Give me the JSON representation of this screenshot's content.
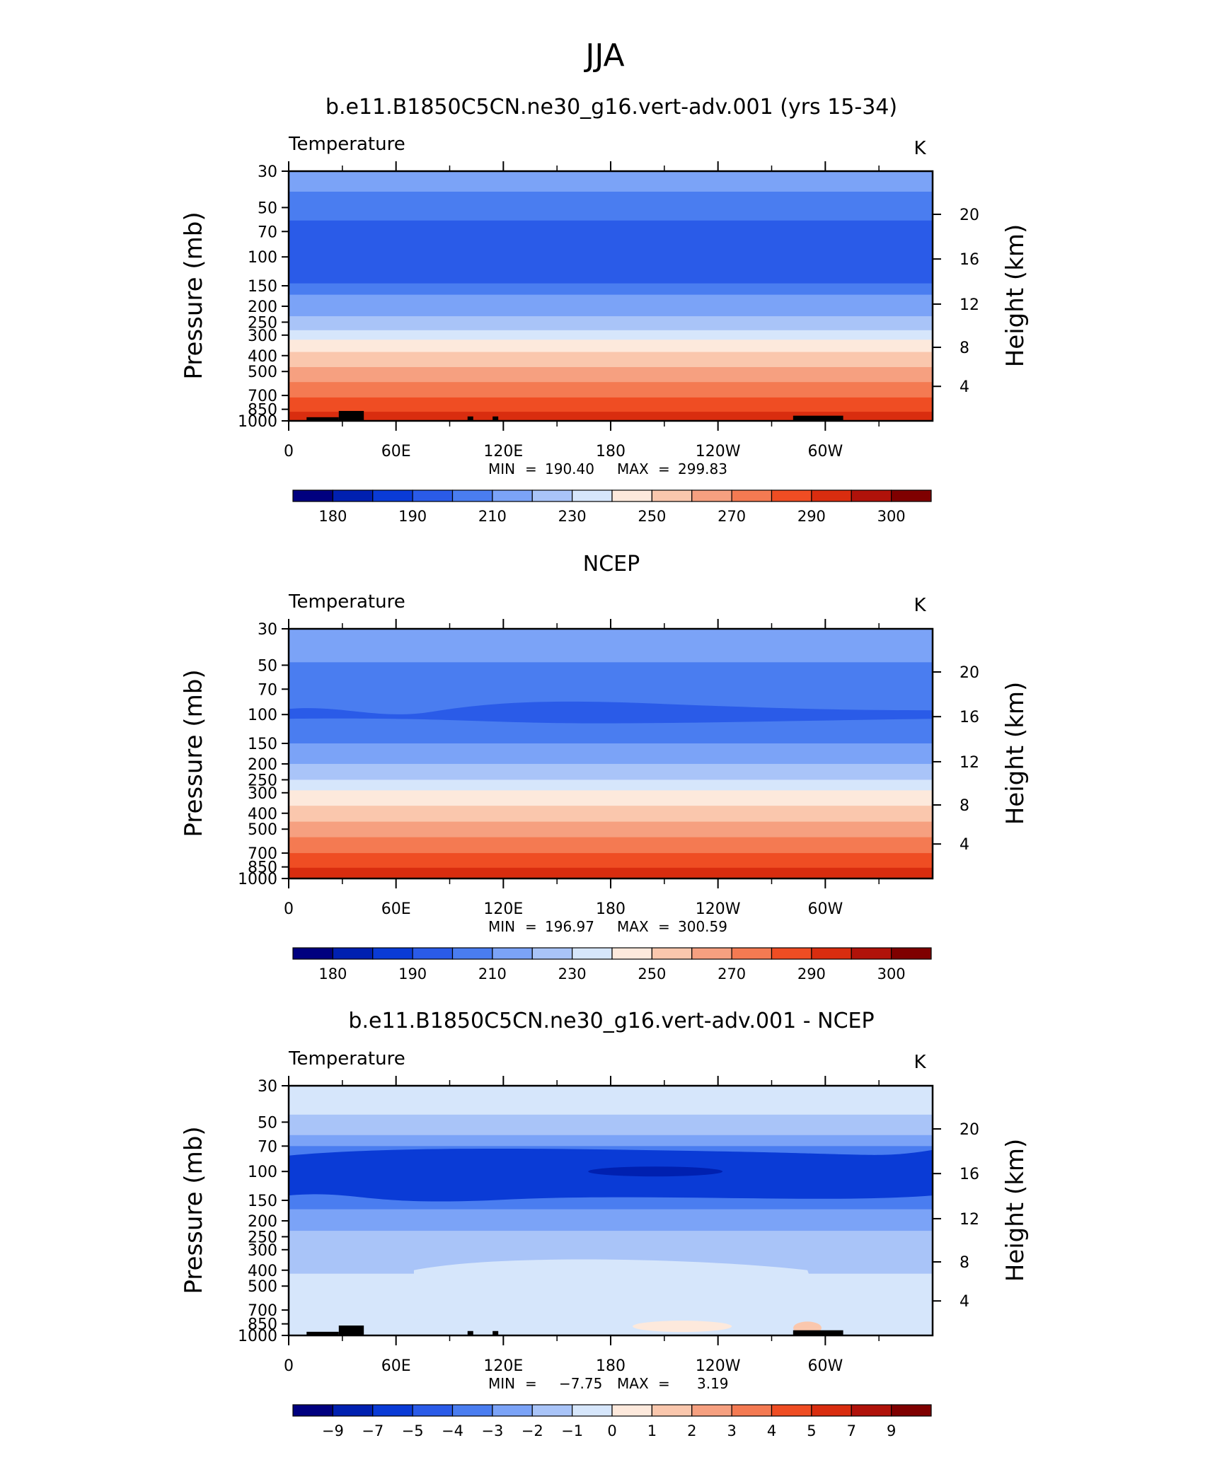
{
  "figure": {
    "title": "JJA"
  },
  "colors": {
    "temp_levels": [
      "#00007f",
      "#0020b0",
      "#0a3bd6",
      "#2a5be8",
      "#4a7df0",
      "#7ba3f7",
      "#a9c4f8",
      "#d6e6fb",
      "#fde9dc",
      "#fac7ad",
      "#f6a080",
      "#f47a52",
      "#ef4d23",
      "#d92d0f",
      "#b0120a",
      "#7f0000"
    ],
    "diff_levels": [
      "#00007f",
      "#0020b0",
      "#0a3bd6",
      "#2a5be8",
      "#4a7df0",
      "#7ba3f7",
      "#a9c4f8",
      "#d6e6fb",
      "#fde9dc",
      "#fac7ad",
      "#f6a080",
      "#f47a52",
      "#ef4d23",
      "#d92d0f",
      "#b0120a",
      "#7f0000"
    ],
    "topography": "#000000"
  },
  "chart_data": [
    {
      "type": "heatmap",
      "panel_title": "b.e11.B1850C5CN.ne30_g16.vert-adv.001 (yrs 15-34)",
      "variable": "Temperature",
      "units": "K",
      "ylabel": "Pressure  (mb)",
      "ylabel_right": "Height  (km)",
      "pressure_ticks": [
        30,
        50,
        70,
        100,
        150,
        200,
        250,
        300,
        400,
        500,
        700,
        850,
        1000
      ],
      "height_ticks": [
        20,
        16,
        12,
        8,
        4
      ],
      "lon_ticks": [
        "0",
        "60E",
        "120E",
        "180",
        "120W",
        "60W"
      ],
      "ylim": [
        1000,
        30
      ],
      "xlim": [
        0,
        360
      ],
      "stats": {
        "min_label": "MIN",
        "min": "190.40",
        "max_label": "MAX",
        "max": "299.83"
      },
      "colorbar_labels": [
        "180",
        "190",
        "210",
        "230",
        "250",
        "270",
        "290",
        "300"
      ],
      "bands_by_pressure": [
        {
          "p_top": 30,
          "p_bot": 40,
          "level": 5
        },
        {
          "p_top": 40,
          "p_bot": 60,
          "level": 4
        },
        {
          "p_top": 60,
          "p_bot": 145,
          "level": 3
        },
        {
          "p_top": 145,
          "p_bot": 170,
          "level": 4
        },
        {
          "p_top": 170,
          "p_bot": 230,
          "level": 5
        },
        {
          "p_top": 230,
          "p_bot": 280,
          "level": 6
        },
        {
          "p_top": 280,
          "p_bot": 320,
          "level": 7
        },
        {
          "p_top": 320,
          "p_bot": 380,
          "level": 8
        },
        {
          "p_top": 380,
          "p_bot": 470,
          "level": 9
        },
        {
          "p_top": 470,
          "p_bot": 580,
          "level": 10
        },
        {
          "p_top": 580,
          "p_bot": 720,
          "level": 11
        },
        {
          "p_top": 720,
          "p_bot": 880,
          "level": 12
        },
        {
          "p_top": 880,
          "p_bot": 1000,
          "level": 13
        }
      ]
    },
    {
      "type": "heatmap",
      "panel_title": "NCEP",
      "variable": "Temperature",
      "units": "K",
      "ylabel": "Pressure  (mb)",
      "ylabel_right": "Height  (km)",
      "pressure_ticks": [
        30,
        50,
        70,
        100,
        150,
        200,
        250,
        300,
        400,
        500,
        700,
        850,
        1000
      ],
      "height_ticks": [
        20,
        16,
        12,
        8,
        4
      ],
      "lon_ticks": [
        "0",
        "60E",
        "120E",
        "180",
        "120W",
        "60W"
      ],
      "ylim": [
        1000,
        30
      ],
      "xlim": [
        0,
        360
      ],
      "stats": {
        "min_label": "MIN",
        "min": "196.97",
        "max_label": "MAX",
        "max": "300.59"
      },
      "colorbar_labels": [
        "180",
        "190",
        "210",
        "230",
        "250",
        "270",
        "290",
        "300"
      ],
      "bands_by_pressure": [
        {
          "p_top": 30,
          "p_bot": 48,
          "level": 5
        },
        {
          "p_top": 48,
          "p_bot": 150,
          "level": 4
        },
        {
          "p_top": 150,
          "p_bot": 200,
          "level": 5
        },
        {
          "p_top": 200,
          "p_bot": 250,
          "level": 6
        },
        {
          "p_top": 250,
          "p_bot": 290,
          "level": 7
        },
        {
          "p_top": 290,
          "p_bot": 360,
          "level": 8
        },
        {
          "p_top": 360,
          "p_bot": 450,
          "level": 9
        },
        {
          "p_top": 450,
          "p_bot": 560,
          "level": 10
        },
        {
          "p_top": 560,
          "p_bot": 700,
          "level": 11
        },
        {
          "p_top": 700,
          "p_bot": 860,
          "level": 12
        },
        {
          "p_top": 860,
          "p_bot": 1000,
          "level": 13
        }
      ]
    },
    {
      "type": "heatmap",
      "panel_title": "b.e11.B1850C5CN.ne30_g16.vert-adv.001 - NCEP",
      "variable": "Temperature",
      "units": "K",
      "ylabel": "Pressure  (mb)",
      "ylabel_right": "Height  (km)",
      "pressure_ticks": [
        30,
        50,
        70,
        100,
        150,
        200,
        250,
        300,
        400,
        500,
        700,
        850,
        1000
      ],
      "height_ticks": [
        20,
        16,
        12,
        8,
        4
      ],
      "lon_ticks": [
        "0",
        "60E",
        "120E",
        "180",
        "120W",
        "60W"
      ],
      "ylim": [
        1000,
        30
      ],
      "xlim": [
        0,
        360
      ],
      "stats": {
        "min_label": "MIN",
        "min": "−7.75",
        "max_label": "MAX",
        "max": "3.19"
      },
      "colorbar_labels": [
        "−9",
        "−7",
        "−5",
        "−4",
        "−3",
        "−2",
        "−1",
        "0",
        "1",
        "2",
        "3",
        "4",
        "5",
        "7",
        "9"
      ],
      "bands_by_pressure": [
        {
          "p_top": 30,
          "p_bot": 45,
          "level": 7
        },
        {
          "p_top": 45,
          "p_bot": 60,
          "level": 6
        },
        {
          "p_top": 60,
          "p_bot": 70,
          "level": 5
        },
        {
          "p_top": 70,
          "p_bot": 85,
          "level": 4
        },
        {
          "p_top": 85,
          "p_bot": 130,
          "level": 3
        },
        {
          "p_top": 130,
          "p_bot": 170,
          "level": 4
        },
        {
          "p_top": 170,
          "p_bot": 230,
          "level": 5
        },
        {
          "p_top": 230,
          "p_bot": 420,
          "level": 6
        },
        {
          "p_top": 420,
          "p_bot": 800,
          "level": 7
        },
        {
          "p_top": 800,
          "p_bot": 1000,
          "level": 7
        }
      ]
    }
  ]
}
